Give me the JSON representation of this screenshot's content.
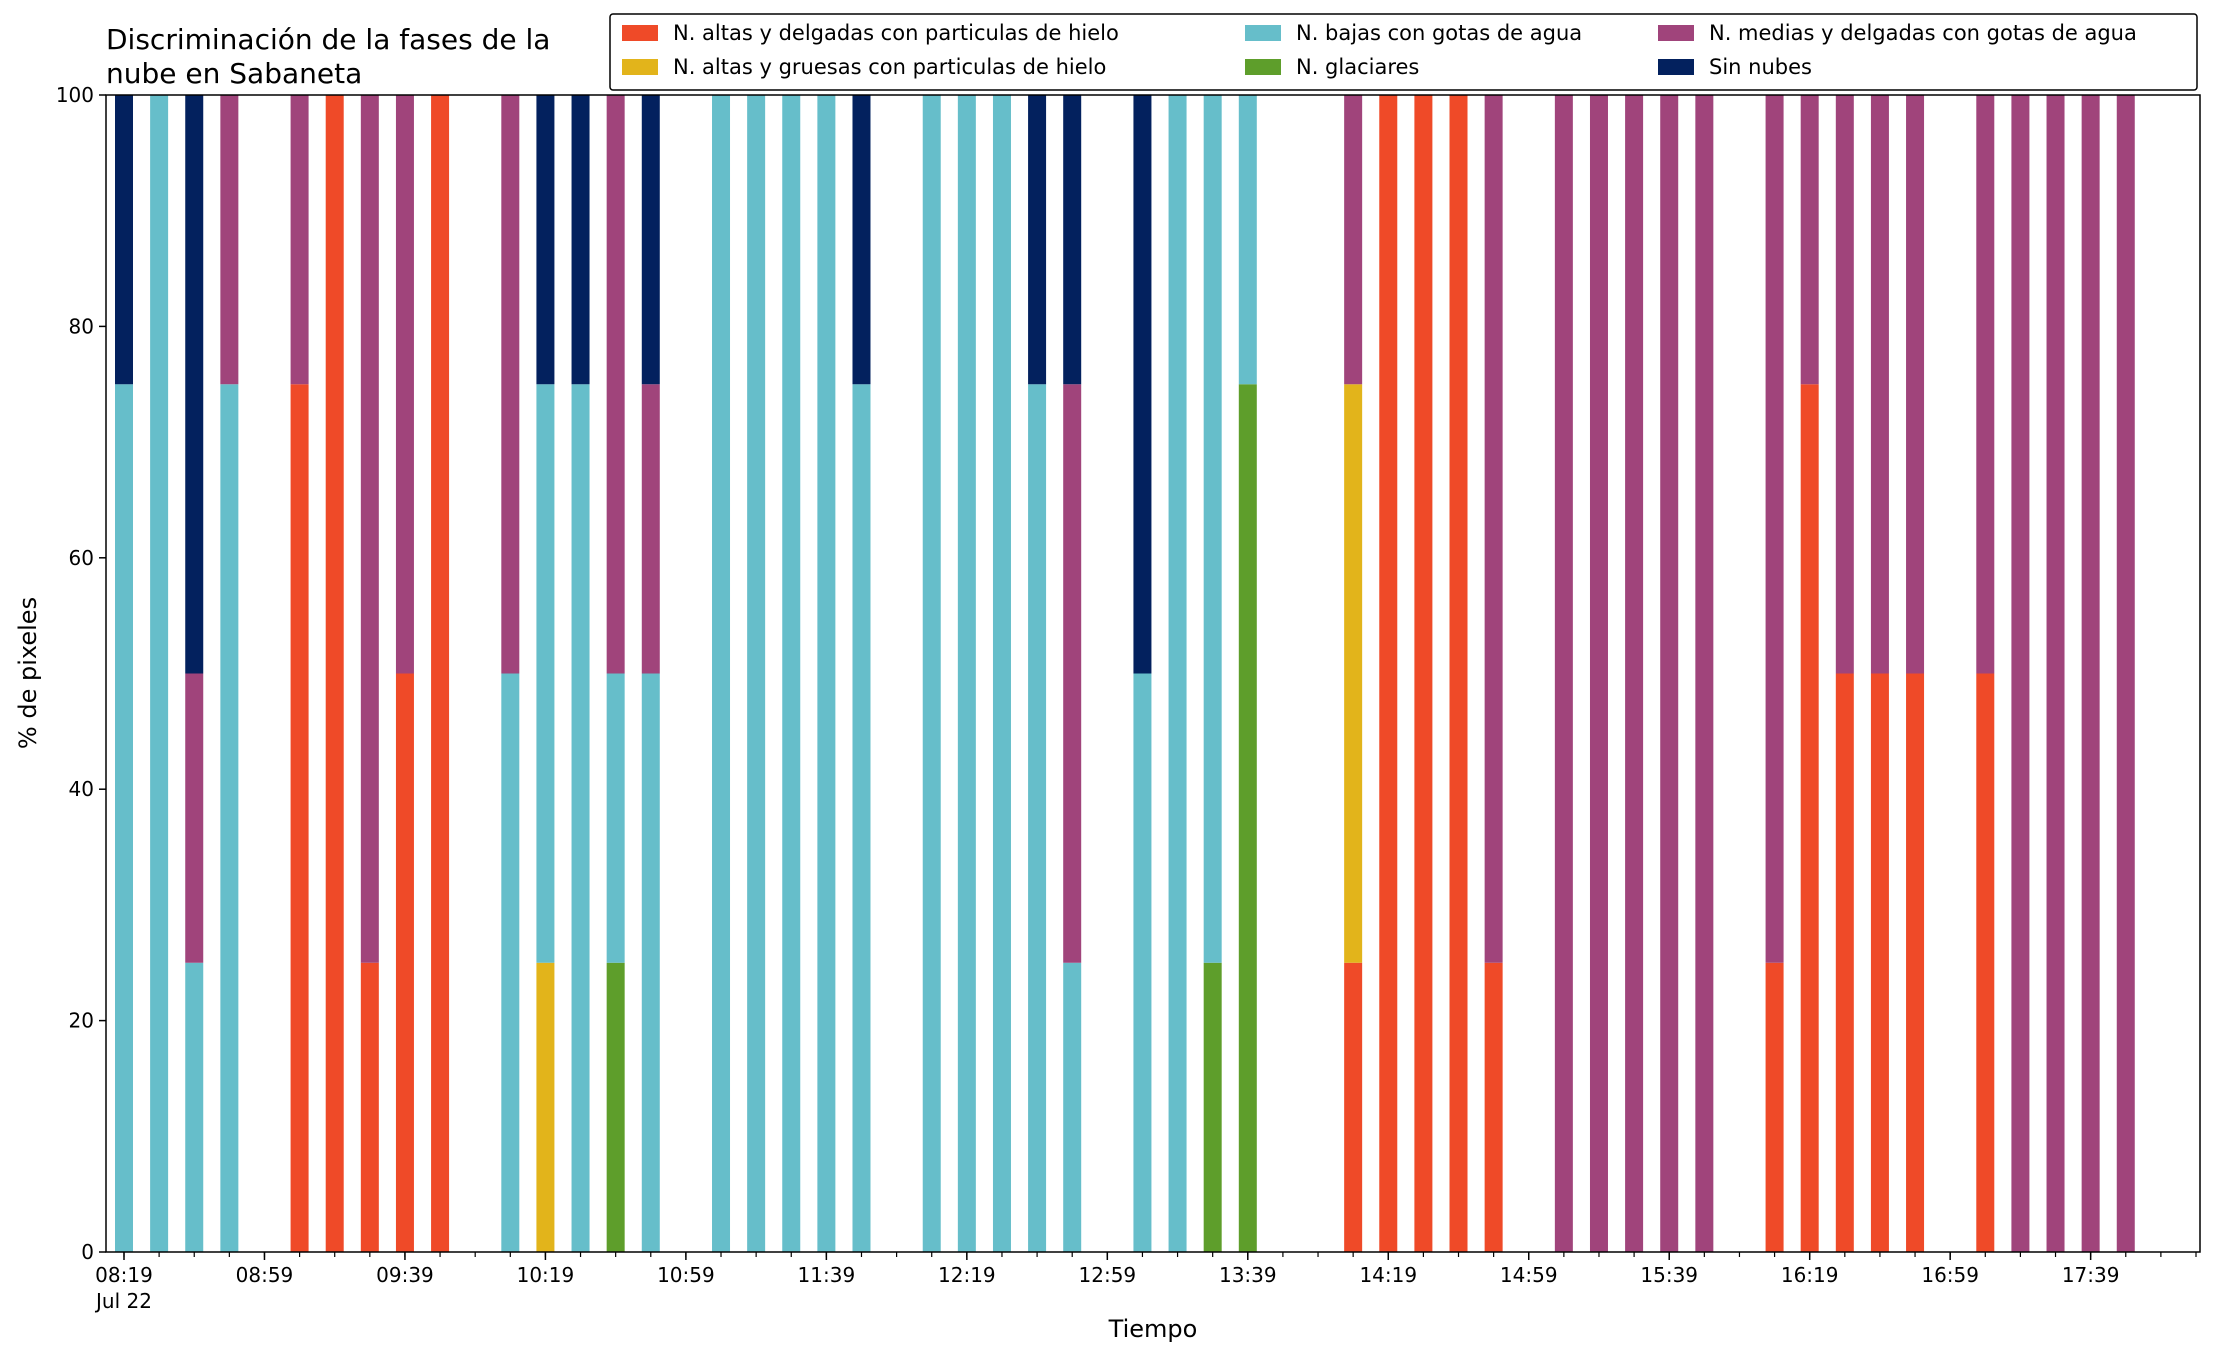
{
  "chart_data": {
    "type": "bar",
    "stacked": true,
    "title_lines": [
      "Discriminación de la fases de la",
      "nube en Sabaneta"
    ],
    "xlabel": "Tiempo",
    "ylabel": "% de pixeles",
    "ylim": [
      0,
      100
    ],
    "yticks": [
      0,
      20,
      40,
      60,
      80,
      100
    ],
    "grid": false,
    "legend_position": "top-right",
    "x_start": "08:19",
    "x_start_date": "Jul 22",
    "x_step_minutes": 10,
    "x_domain": [
      "08:19",
      "18:09"
    ],
    "x_tick_labels": [
      {
        "time": "08:19",
        "label": "08:19",
        "sublabel": "Jul 22"
      },
      {
        "time": "08:59",
        "label": "08:59"
      },
      {
        "time": "09:39",
        "label": "09:39"
      },
      {
        "time": "10:19",
        "label": "10:19"
      },
      {
        "time": "10:59",
        "label": "10:59"
      },
      {
        "time": "11:39",
        "label": "11:39"
      },
      {
        "time": "12:19",
        "label": "12:19"
      },
      {
        "time": "12:59",
        "label": "12:59"
      },
      {
        "time": "13:39",
        "label": "13:39"
      },
      {
        "time": "14:19",
        "label": "14:19"
      },
      {
        "time": "14:59",
        "label": "14:59"
      },
      {
        "time": "15:39",
        "label": "15:39"
      },
      {
        "time": "16:19",
        "label": "16:19"
      },
      {
        "time": "16:59",
        "label": "16:59"
      },
      {
        "time": "17:39",
        "label": "17:39"
      }
    ],
    "series": [
      {
        "key": "altas_delgadas",
        "name": "N. altas y delgadas con particulas de hielo",
        "color": "#EF4A28"
      },
      {
        "key": "altas_gruesas",
        "name": "N. altas y gruesas con particulas de hielo",
        "color": "#E2B41B"
      },
      {
        "key": "glaciares",
        "name": "N. glaciares",
        "color": "#5E9E2B"
      },
      {
        "key": "bajas_agua",
        "name": "N. bajas con gotas de agua",
        "color": "#66BECA"
      },
      {
        "key": "medias_agua",
        "name": "N. medias y delgadas con gotas de agua",
        "color": "#A0447B"
      },
      {
        "key": "sin_nubes",
        "name": "Sin nubes",
        "color": "#03215E"
      }
    ],
    "legend_order": [
      "altas_delgadas",
      "altas_gruesas",
      "bajas_agua",
      "glaciares",
      "medias_agua",
      "sin_nubes"
    ],
    "bars": [
      {
        "time": "08:19",
        "bajas_agua": 75,
        "sin_nubes": 25
      },
      {
        "time": "08:29",
        "bajas_agua": 100
      },
      {
        "time": "08:39",
        "bajas_agua": 25,
        "medias_agua": 25,
        "sin_nubes": 50
      },
      {
        "time": "08:49",
        "bajas_agua": 75,
        "medias_agua": 25
      },
      {
        "time": "09:09",
        "altas_delgadas": 75,
        "medias_agua": 25
      },
      {
        "time": "09:19",
        "altas_delgadas": 100
      },
      {
        "time": "09:29",
        "altas_delgadas": 25,
        "medias_agua": 75
      },
      {
        "time": "09:39",
        "altas_delgadas": 50,
        "medias_agua": 50
      },
      {
        "time": "09:49",
        "altas_delgadas": 100
      },
      {
        "time": "10:09",
        "bajas_agua": 50,
        "medias_agua": 50
      },
      {
        "time": "10:19",
        "altas_gruesas": 25,
        "bajas_agua": 50,
        "sin_nubes": 25
      },
      {
        "time": "10:29",
        "bajas_agua": 75,
        "sin_nubes": 25
      },
      {
        "time": "10:39",
        "glaciares": 25,
        "bajas_agua": 25,
        "medias_agua": 50
      },
      {
        "time": "10:49",
        "bajas_agua": 50,
        "medias_agua": 25,
        "sin_nubes": 25
      },
      {
        "time": "11:09",
        "bajas_agua": 100
      },
      {
        "time": "11:19",
        "bajas_agua": 100
      },
      {
        "time": "11:29",
        "bajas_agua": 100
      },
      {
        "time": "11:39",
        "bajas_agua": 100
      },
      {
        "time": "11:49",
        "bajas_agua": 75,
        "sin_nubes": 25
      },
      {
        "time": "12:09",
        "bajas_agua": 100
      },
      {
        "time": "12:19",
        "bajas_agua": 100
      },
      {
        "time": "12:29",
        "bajas_agua": 100
      },
      {
        "time": "12:39",
        "bajas_agua": 75,
        "sin_nubes": 25
      },
      {
        "time": "12:49",
        "bajas_agua": 25,
        "medias_agua": 50,
        "sin_nubes": 25
      },
      {
        "time": "13:09",
        "bajas_agua": 50,
        "sin_nubes": 50
      },
      {
        "time": "13:19",
        "bajas_agua": 100
      },
      {
        "time": "13:29",
        "glaciares": 25,
        "bajas_agua": 75
      },
      {
        "time": "13:39",
        "glaciares": 75,
        "bajas_agua": 25
      },
      {
        "time": "14:09",
        "altas_delgadas": 25,
        "altas_gruesas": 50,
        "medias_agua": 25
      },
      {
        "time": "14:19",
        "altas_delgadas": 100
      },
      {
        "time": "14:29",
        "altas_delgadas": 100
      },
      {
        "time": "14:39",
        "altas_delgadas": 100
      },
      {
        "time": "14:49",
        "altas_delgadas": 25,
        "medias_agua": 75
      },
      {
        "time": "15:09",
        "medias_agua": 100
      },
      {
        "time": "15:19",
        "medias_agua": 100
      },
      {
        "time": "15:29",
        "medias_agua": 100
      },
      {
        "time": "15:39",
        "medias_agua": 100
      },
      {
        "time": "15:49",
        "medias_agua": 100
      },
      {
        "time": "16:09",
        "altas_delgadas": 25,
        "medias_agua": 75
      },
      {
        "time": "16:19",
        "altas_delgadas": 75,
        "medias_agua": 25
      },
      {
        "time": "16:29",
        "altas_delgadas": 50,
        "medias_agua": 50
      },
      {
        "time": "16:39",
        "altas_delgadas": 50,
        "medias_agua": 50
      },
      {
        "time": "16:49",
        "altas_delgadas": 50,
        "medias_agua": 50
      },
      {
        "time": "17:09",
        "altas_delgadas": 50,
        "medias_agua": 50
      },
      {
        "time": "17:19",
        "medias_agua": 100
      },
      {
        "time": "17:29",
        "medias_agua": 100
      },
      {
        "time": "17:39",
        "medias_agua": 100
      },
      {
        "time": "17:49",
        "medias_agua": 100
      }
    ]
  }
}
